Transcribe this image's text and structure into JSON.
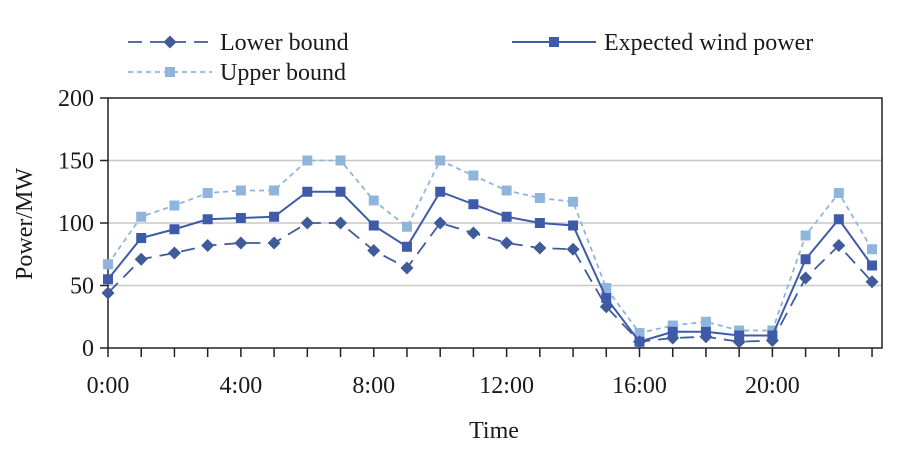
{
  "chart_data": {
    "type": "line",
    "xlabel": "Time",
    "ylabel": "Power/MW",
    "ylim": [
      0,
      200
    ],
    "yticks": [
      0,
      50,
      100,
      150,
      200
    ],
    "x": [
      0,
      1,
      2,
      3,
      4,
      5,
      6,
      7,
      8,
      9,
      10,
      11,
      12,
      13,
      14,
      15,
      16,
      17,
      18,
      19,
      20,
      21,
      22,
      23
    ],
    "xlim": [
      0,
      23.3
    ],
    "xtick_positions": [
      0,
      4,
      8,
      12,
      16,
      20
    ],
    "xtick_labels": [
      "0:00",
      "4:00",
      "8:00",
      "12:00",
      "16:00",
      "20:00"
    ],
    "grid": "horizontal",
    "legend_position": "top",
    "series": [
      {
        "name": "Lower bound",
        "color": "#3f5b9a",
        "line_style": "dashed",
        "marker": "diamond",
        "values": [
          44,
          71,
          76,
          82,
          84,
          84,
          100,
          100,
          78,
          64,
          100,
          92,
          84,
          80,
          79,
          33,
          5,
          8,
          9,
          5,
          6,
          56,
          82,
          53
        ]
      },
      {
        "name": "Expected wind power",
        "color": "#3d5ba8",
        "line_style": "solid",
        "marker": "square",
        "values": [
          55,
          88,
          95,
          103,
          104,
          105,
          125,
          125,
          98,
          81,
          125,
          115,
          105,
          100,
          98,
          40,
          5,
          13,
          13,
          10,
          10,
          71,
          103,
          66
        ]
      },
      {
        "name": "Upper bound",
        "color": "#8fb5dc",
        "line_style": "dotted",
        "marker": "square",
        "values": [
          67,
          105,
          114,
          124,
          126,
          126,
          150,
          150,
          118,
          97,
          150,
          138,
          126,
          120,
          117,
          48,
          12,
          18,
          21,
          14,
          14,
          90,
          124,
          79
        ]
      }
    ]
  }
}
